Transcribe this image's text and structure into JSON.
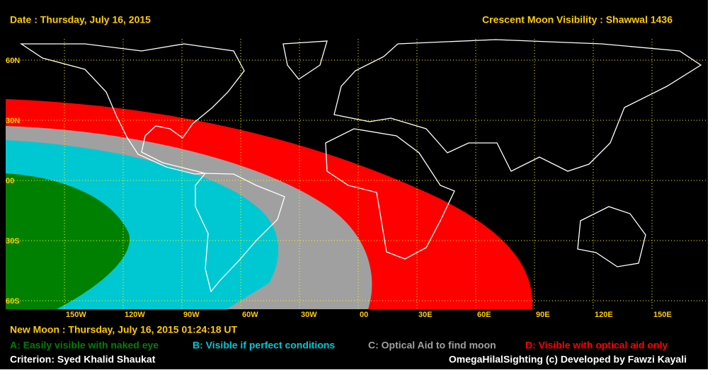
{
  "header": {
    "date": "Date : Thursday, July 16, 2015",
    "title": "Crescent Moon Visibility : Shawwal  1436"
  },
  "map": {
    "lat_labels": [
      "60N",
      "30N",
      "00",
      "30S",
      "60S"
    ],
    "lon_labels": [
      "150W",
      "120W",
      "90W",
      "60W",
      "30W",
      "00",
      "30E",
      "60E",
      "90E",
      "120E",
      "150E"
    ]
  },
  "footer": {
    "new_moon": "New Moon : Thursday, July 16, 2015  01:24:18  UT",
    "legend": [
      {
        "text": "A: Easily visible with naked eye",
        "color": "#008000"
      },
      {
        "text": "B: Visible if perfect conditions",
        "color": "#00c8d2"
      },
      {
        "text": "C: Optical Aid to find moon",
        "color": "#a0a0a0"
      },
      {
        "text": "D: Visible with optical aid only",
        "color": "#ff0000"
      }
    ],
    "criterion": "Criterion: Syed Khalid Shaukat",
    "credit": "OmegaHilalSighting  (c)  Developed by Fawzi Kayali"
  }
}
